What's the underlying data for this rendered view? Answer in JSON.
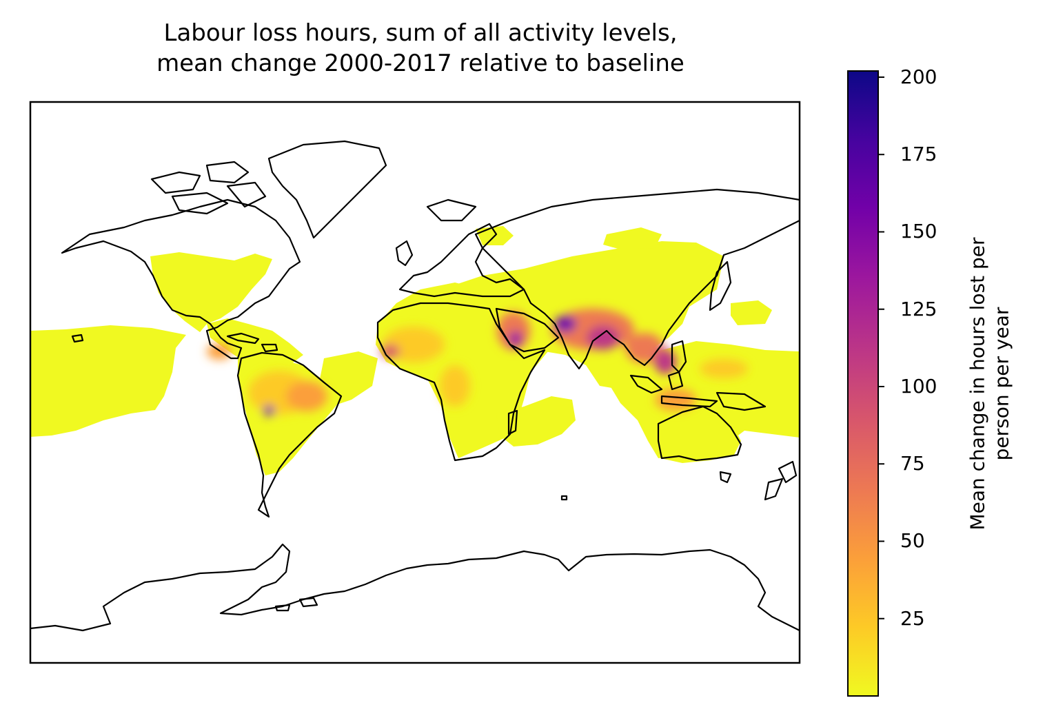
{
  "title_line1": "Labour loss hours, sum of all activity levels,",
  "title_line2": "mean change 2000-2017 relative to baseline",
  "colorbar": {
    "label_line1": "Mean change in hours  lost per",
    "label_line2": "person per year",
    "min": 0,
    "max": 202,
    "ticks": [
      25,
      50,
      75,
      100,
      125,
      150,
      175,
      200
    ],
    "tick_labels": [
      "25",
      "50",
      "75",
      "100",
      "125",
      "150",
      "175",
      "200"
    ],
    "colormap": "plasma_r",
    "colors": [
      "#f0f921",
      "#fdca26",
      "#fb9f3a",
      "#ed7953",
      "#d8576b",
      "#bd3786",
      "#9c179e",
      "#7201a8",
      "#46039f",
      "#0d0887"
    ]
  },
  "map": {
    "projection": "Miller cylindrical",
    "land_outline_color": "#000000",
    "frame_color": "#000000"
  }
}
